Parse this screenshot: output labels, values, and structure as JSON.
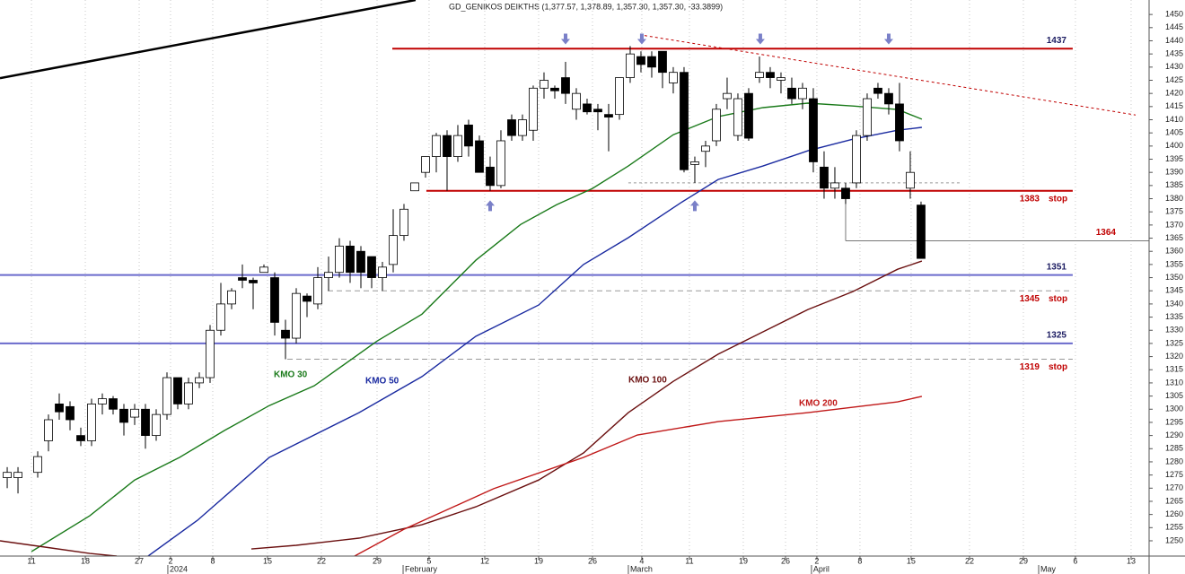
{
  "chart_data": {
    "type": "candlestick",
    "title": "GD_GENIKOS DEIKTHS (1,377.57, 1,378.89, 1,357.30, 1,357.30, -33.3899)",
    "x": [
      0.17,
      1.17,
      3,
      4,
      5,
      6,
      7,
      8,
      9,
      10,
      11,
      12,
      13,
      14,
      15,
      16,
      17,
      18,
      19,
      20,
      21,
      22,
      23,
      24,
      25,
      26,
      27,
      28,
      29,
      30,
      31,
      32,
      33,
      34,
      35,
      36,
      37,
      38,
      39,
      40,
      41,
      42,
      43,
      44,
      45,
      46,
      47,
      48,
      49,
      50,
      51,
      52,
      53,
      54,
      55,
      56,
      57,
      58,
      59,
      60,
      61,
      62,
      63,
      64,
      65,
      66,
      67,
      68,
      69,
      70,
      71,
      72,
      73,
      74,
      75,
      76,
      77,
      78,
      79,
      80,
      81,
      82,
      83,
      84,
      85
    ],
    "open": [
      1274,
      1274,
      1276,
      1288,
      1302,
      1301,
      1290,
      1288,
      1302,
      1304,
      1300,
      1297,
      1300,
      1290,
      1298,
      1312,
      1302,
      1310,
      1312,
      1330,
      1340,
      1350,
      1349,
      1352,
      1350,
      1330,
      1327,
      1343,
      1340,
      1350,
      1352,
      1362,
      1360,
      1358,
      1350,
      1355,
      1366,
      1383,
      1390,
      1396,
      1404,
      1396,
      1408,
      1402,
      1392,
      1385,
      1410,
      1404,
      1406,
      1422,
      1422,
      1426,
      1414,
      1416,
      1414,
      1412,
      1412,
      1426,
      1434,
      1434,
      1436,
      1424,
      1428,
      1393,
      1398,
      1402,
      1418,
      1404,
      1420,
      1426,
      1428,
      1425,
      1422,
      1418,
      1418,
      1392,
      1384,
      1384,
      1386,
      1404,
      1422,
      1420,
      1416,
      1384,
      1377.57
    ],
    "high": [
      1278,
      1278,
      1284,
      1298,
      1306,
      1303,
      1293,
      1304,
      1306,
      1305,
      1302,
      1302,
      1302,
      1300,
      1314,
      1312,
      1312,
      1314,
      1332,
      1348,
      1346,
      1355,
      1350,
      1355,
      1352,
      1334,
      1346,
      1344,
      1354,
      1358,
      1365,
      1364,
      1362,
      1358,
      1356,
      1376,
      1378,
      1386,
      1396,
      1405,
      1406,
      1408,
      1410,
      1404,
      1396,
      1406,
      1412,
      1412,
      1423,
      1428,
      1423,
      1432,
      1422,
      1418,
      1416,
      1416,
      1426,
      1438,
      1436,
      1436,
      1436,
      1430,
      1430,
      1396,
      1402,
      1416,
      1426,
      1420,
      1422,
      1434,
      1430,
      1428,
      1426,
      1424,
      1422,
      1398,
      1392,
      1386,
      1406,
      1420,
      1424,
      1422,
      1424,
      1398,
      1378.89
    ],
    "low": [
      1270,
      1268,
      1274,
      1284,
      1296,
      1292,
      1286,
      1286,
      1298,
      1298,
      1290,
      1294,
      1285,
      1288,
      1296,
      1300,
      1300,
      1308,
      1310,
      1328,
      1338,
      1346,
      1338,
      1352,
      1328,
      1319,
      1325,
      1335,
      1338,
      1345,
      1350,
      1348,
      1346,
      1346,
      1345,
      1352,
      1364,
      1383,
      1388,
      1390,
      1383,
      1394,
      1396,
      1390,
      1383,
      1384,
      1402,
      1402,
      1402,
      1418,
      1418,
      1416,
      1410,
      1412,
      1406,
      1398,
      1410,
      1424,
      1428,
      1426,
      1422,
      1420,
      1390,
      1386,
      1392,
      1400,
      1414,
      1402,
      1402,
      1424,
      1422,
      1420,
      1416,
      1414,
      1390,
      1380,
      1380,
      1378,
      1384,
      1402,
      1418,
      1412,
      1398,
      1380,
      1357.3
    ],
    "close": [
      1276,
      1276,
      1282,
      1296,
      1299,
      1296,
      1288,
      1302,
      1304,
      1300,
      1295,
      1300,
      1290,
      1298,
      1312,
      1302,
      1310,
      1312,
      1330,
      1340,
      1345,
      1349,
      1348,
      1354,
      1333,
      1327,
      1344,
      1341,
      1350,
      1352,
      1362,
      1352,
      1352,
      1350,
      1354,
      1366,
      1376,
      1386,
      1396,
      1404,
      1396,
      1404,
      1400,
      1390,
      1385,
      1402,
      1404,
      1410,
      1422,
      1425,
      1421,
      1420,
      1420,
      1413,
      1413,
      1411,
      1426,
      1435,
      1431,
      1430,
      1428,
      1428,
      1391,
      1394,
      1400,
      1414,
      1420,
      1418,
      1403,
      1428,
      1426,
      1426,
      1418,
      1422,
      1394,
      1384,
      1386,
      1380,
      1404,
      1418,
      1420,
      1416,
      1402,
      1390,
      1357.3
    ],
    "xlim": [
      -0.5,
      106.17
    ],
    "ylim": [
      1244.2,
      1455.5
    ],
    "xticks": [
      {
        "value": 2.42,
        "label": "11"
      },
      {
        "value": 7.42,
        "label": "18"
      },
      {
        "value": 12.42,
        "label": "27"
      },
      {
        "value": 15.33,
        "label": "2"
      },
      {
        "value": 19.25,
        "label": "8"
      },
      {
        "value": 24.33,
        "label": "15"
      },
      {
        "value": 29.33,
        "label": "22"
      },
      {
        "value": 34.5,
        "label": "29"
      },
      {
        "value": 39.33,
        "label": "5"
      },
      {
        "value": 44.5,
        "label": "12"
      },
      {
        "value": 49.5,
        "label": "19"
      },
      {
        "value": 54.5,
        "label": "26"
      },
      {
        "value": 59.08,
        "label": "4"
      },
      {
        "value": 63.5,
        "label": "11"
      },
      {
        "value": 68.5,
        "label": "19"
      },
      {
        "value": 72.42,
        "label": "26"
      },
      {
        "value": 75.33,
        "label": "2"
      },
      {
        "value": 79.33,
        "label": "8"
      },
      {
        "value": 84.08,
        "label": "15"
      },
      {
        "value": 89.5,
        "label": "22"
      },
      {
        "value": 94.5,
        "label": "29"
      },
      {
        "value": 99.33,
        "label": "6"
      },
      {
        "value": 104.5,
        "label": "13"
      }
    ],
    "months": [
      {
        "value": 15.33,
        "label": "2024"
      },
      {
        "value": 37.17,
        "label": "February"
      },
      {
        "value": 58.08,
        "label": "March"
      },
      {
        "value": 75.08,
        "label": "April"
      },
      {
        "value": 96.17,
        "label": "May"
      }
    ],
    "yticks": [
      1250,
      1255,
      1260,
      1265,
      1270,
      1275,
      1280,
      1285,
      1290,
      1295,
      1300,
      1305,
      1310,
      1315,
      1320,
      1325,
      1330,
      1335,
      1340,
      1345,
      1350,
      1355,
      1360,
      1365,
      1370,
      1375,
      1380,
      1385,
      1390,
      1395,
      1400,
      1405,
      1410,
      1415,
      1420,
      1425,
      1430,
      1435,
      1440,
      1445,
      1450
    ],
    "grid": true,
    "series": [
      {
        "name": "KMO 30",
        "color": "#1a7a1a",
        "x": [
          2.42,
          7.83,
          12,
          16.17,
          20.33,
          24.5,
          28.67,
          34.5,
          38.67,
          43.67,
          47.83,
          51.17,
          54.5,
          57.83,
          62,
          66.17,
          70.33,
          74.5,
          78.67,
          82.83,
          85.08
        ],
        "values": [
          1245.9,
          1259.5,
          1273.1,
          1281.7,
          1291.9,
          1301.4,
          1308.9,
          1325.9,
          1336.1,
          1356.6,
          1370.2,
          1377.7,
          1383.9,
          1392.4,
          1404.3,
          1411.2,
          1414.6,
          1416.3,
          1415.2,
          1413.9,
          1410.2
        ]
      },
      {
        "name": "KMO 50",
        "color": "#1a2aa0",
        "x": [
          13.25,
          17.83,
          24.5,
          32.83,
          38.67,
          43.67,
          49.5,
          53.67,
          57.83,
          62.83,
          66.17,
          70.33,
          74.5,
          78.67,
          82.83,
          85.08
        ],
        "values": [
          1244.2,
          1257.8,
          1281.7,
          1298.7,
          1312.4,
          1327.7,
          1339.6,
          1355,
          1365.2,
          1378.8,
          1387.3,
          1392.4,
          1398.2,
          1402.6,
          1406,
          1407.1
        ]
      },
      {
        "name": "KMO 100",
        "color": "#6b1010",
        "x": [
          -0.5,
          3.67,
          7.83,
          10.33,
          16.5,
          22.83,
          27,
          32.83,
          38.67,
          43.67,
          49.5,
          53.67,
          57.83,
          62,
          66.17,
          70.33,
          74.5,
          78.67,
          82.83,
          85.08
        ],
        "values": [
          1250,
          1247.6,
          1245.2,
          1244.2,
          null,
          1246.9,
          1248.3,
          1251,
          1256.1,
          1262.9,
          1273.1,
          1283.4,
          1298.7,
          1310.6,
          1320.9,
          1329.4,
          1337.9,
          1344.7,
          1353.2,
          1356.3
        ]
      },
      {
        "name": "KMO 200",
        "color": "#c01818",
        "x": [
          32.42,
          37,
          45.33,
          53.67,
          58.67,
          66.17,
          74.5,
          82.83,
          85.08
        ],
        "values": [
          1244.2,
          1254.4,
          1269.8,
          1281.7,
          1290.2,
          1295.3,
          1298.7,
          1302.8,
          1304.9
        ]
      }
    ],
    "levels": [
      {
        "value": 1437,
        "x": [
          35.92,
          99.08
        ],
        "color": "#c00000",
        "label_color": "#1a1a60",
        "dash": false
      },
      {
        "value": 1383,
        "x": [
          39.08,
          99.08
        ],
        "color": "#c00000",
        "label_color": "#c00000",
        "dash": false,
        "note": "stop"
      },
      {
        "value": 1364,
        "x": [
          78,
          106.17
        ],
        "color": "#777777",
        "label_color": "#c00000",
        "dash": false
      },
      {
        "value": 1351,
        "x": [
          -0.5,
          99.08
        ],
        "color": "#6a6acc",
        "label_color": "#1a1a60",
        "dash": false
      },
      {
        "value": 1345,
        "x": [
          29.92,
          99.08
        ],
        "color": "#999999",
        "label_color": "#c00000",
        "dash": true,
        "note": "stop"
      },
      {
        "value": 1325,
        "x": [
          -0.5,
          99.08
        ],
        "color": "#6a6acc",
        "label_color": "#1a1a60",
        "dash": false
      },
      {
        "value": 1319,
        "x": [
          26.17,
          99.08
        ],
        "color": "#999999",
        "label_color": "#c00000",
        "dash": true,
        "note": "stop"
      }
    ],
    "lines": [
      {
        "x": [
          59.33,
          104.92
        ],
        "y": [
          1442,
          1411.8
        ],
        "color": "#c00000",
        "dash": true,
        "width": 1
      },
      {
        "x": [
          57.83,
          88.67
        ],
        "y": [
          1386,
          1386
        ],
        "color": "#999999",
        "dash": true,
        "width": 1
      },
      {
        "x": [
          78,
          78
        ],
        "y": [
          1383,
          1364
        ],
        "color": "#777777",
        "dash": false,
        "width": 1
      },
      {
        "x": [
          -0.5,
          38.08
        ],
        "y": [
          1425.8,
          1455.5
        ],
        "color": "#000000",
        "dash": false,
        "width": 2.5
      }
    ],
    "arrows": [
      {
        "x": 52,
        "y": 1440,
        "direction": "down"
      },
      {
        "x": 59.08,
        "y": 1440,
        "direction": "down"
      },
      {
        "x": 70.08,
        "y": 1440,
        "direction": "down"
      },
      {
        "x": 82,
        "y": 1440,
        "direction": "down"
      },
      {
        "x": 45,
        "y": 1378,
        "direction": "up"
      },
      {
        "x": 64,
        "y": 1378,
        "direction": "up"
      }
    ],
    "arrow_color": "#7a80c8"
  }
}
